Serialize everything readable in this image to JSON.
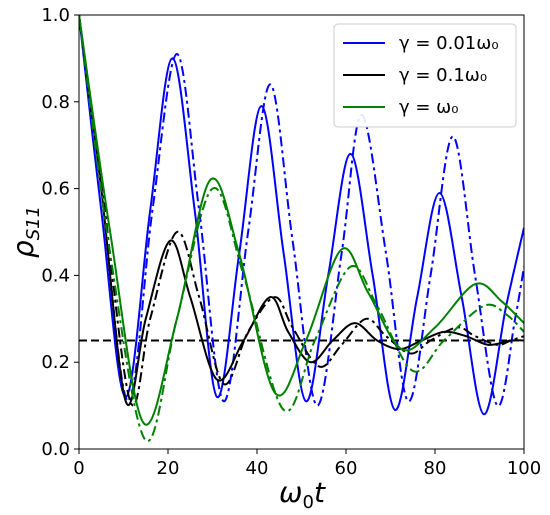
{
  "chart_data": {
    "type": "line",
    "title": "",
    "xlabel": "ω₀t",
    "ylabel": "ρ_S11",
    "xlim": [
      0,
      100
    ],
    "ylim": [
      0.0,
      1.0
    ],
    "x_ticks": [
      "0",
      "20",
      "40",
      "60",
      "80",
      "100"
    ],
    "y_ticks": [
      "0.0",
      "0.2",
      "0.4",
      "0.6",
      "0.8",
      "1.0"
    ],
    "grid": false,
    "legend_position": "top-right",
    "reference_line": {
      "y": 0.25,
      "style": "dashed",
      "color": "#000000"
    },
    "legend": [
      {
        "label": "γ = 0.01ω₀",
        "color": "#0000ff"
      },
      {
        "label": "γ = 0.1ω₀",
        "color": "#000000"
      },
      {
        "label": "γ = ω₀",
        "color": "#008000"
      }
    ],
    "series": [
      {
        "color": "#0000ff",
        "style": "solid",
        "x": [
          0,
          5,
          10.5,
          16,
          21,
          26,
          31,
          36,
          41,
          46,
          51,
          56,
          61,
          66,
          71,
          76,
          81,
          86,
          91,
          96,
          100
        ],
        "y": [
          1.0,
          0.55,
          0.12,
          0.55,
          0.9,
          0.55,
          0.12,
          0.45,
          0.79,
          0.45,
          0.11,
          0.4,
          0.68,
          0.4,
          0.09,
          0.35,
          0.59,
          0.35,
          0.08,
          0.33,
          0.51
        ]
      },
      {
        "color": "#0000ff",
        "style": "dashdot",
        "x": [
          0,
          5,
          11,
          16.5,
          22,
          27,
          32.5,
          38,
          43,
          48,
          53.5,
          59,
          63.5,
          69,
          74,
          79,
          84,
          89,
          94,
          98,
          100
        ],
        "y": [
          1.0,
          0.6,
          0.11,
          0.55,
          0.91,
          0.55,
          0.11,
          0.5,
          0.84,
          0.48,
          0.1,
          0.45,
          0.77,
          0.45,
          0.11,
          0.4,
          0.72,
          0.4,
          0.1,
          0.3,
          0.42
        ]
      },
      {
        "color": "#000000",
        "style": "solid",
        "x": [
          0,
          5,
          10.5,
          15,
          20.5,
          25,
          31,
          37,
          43,
          47,
          52,
          57,
          62,
          67,
          72,
          77,
          82,
          87,
          92,
          97,
          100
        ],
        "y": [
          1.0,
          0.6,
          0.11,
          0.3,
          0.48,
          0.35,
          0.16,
          0.25,
          0.35,
          0.27,
          0.2,
          0.25,
          0.29,
          0.25,
          0.23,
          0.25,
          0.27,
          0.26,
          0.24,
          0.25,
          0.25
        ]
      },
      {
        "color": "#000000",
        "style": "dashdot",
        "x": [
          0,
          5,
          11.5,
          16,
          22,
          27,
          32.5,
          38,
          44,
          48,
          54,
          59,
          64.5,
          69,
          74.5,
          79,
          85,
          89,
          94,
          97,
          100
        ],
        "y": [
          1.0,
          0.62,
          0.11,
          0.3,
          0.5,
          0.35,
          0.15,
          0.27,
          0.35,
          0.28,
          0.19,
          0.24,
          0.3,
          0.26,
          0.22,
          0.25,
          0.28,
          0.26,
          0.24,
          0.25,
          0.26
        ]
      },
      {
        "color": "#008000",
        "style": "solid",
        "x": [
          0,
          7,
          14.5,
          22,
          29.5,
          36,
          44,
          51,
          59,
          65,
          72.5,
          80,
          89,
          95,
          100
        ],
        "y": [
          1.0,
          0.5,
          0.06,
          0.3,
          0.62,
          0.45,
          0.13,
          0.25,
          0.46,
          0.36,
          0.23,
          0.28,
          0.38,
          0.34,
          0.29
        ]
      },
      {
        "color": "#008000",
        "style": "dashdot",
        "x": [
          0,
          7,
          15,
          22,
          30,
          37,
          46,
          53,
          61,
          67,
          75,
          82,
          91,
          96,
          100
        ],
        "y": [
          1.0,
          0.45,
          0.02,
          0.3,
          0.6,
          0.4,
          0.09,
          0.25,
          0.42,
          0.33,
          0.18,
          0.25,
          0.33,
          0.31,
          0.27
        ]
      }
    ]
  }
}
